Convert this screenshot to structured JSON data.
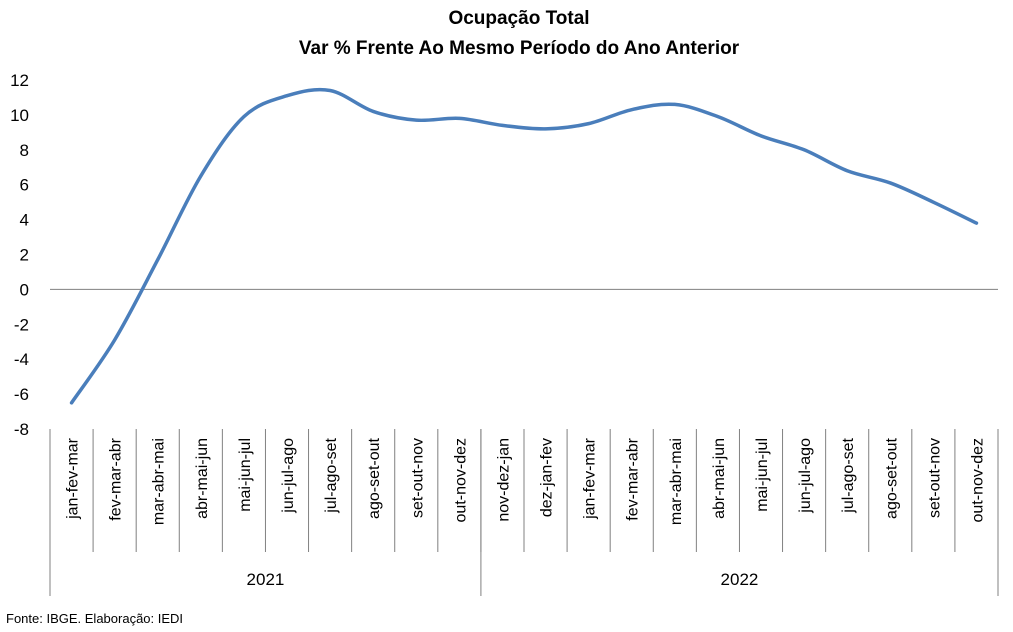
{
  "chart_data": {
    "type": "line",
    "title": "Ocupação Total",
    "subtitle": "Var % Frente Ao Mesmo Período do Ano Anterior",
    "xlabel": "",
    "ylabel": "",
    "ylim": [
      -8,
      12
    ],
    "yticks": [
      "12",
      "10",
      "8",
      "6",
      "4",
      "2",
      "0",
      "-2",
      "-4",
      "-6",
      "-8"
    ],
    "grid": false,
    "categories": [
      "jan-fev-mar",
      "fev-mar-abr",
      "mar-abr-mai",
      "abr-mai-jun",
      "mai-jun-jul",
      "jun-jul-ago",
      "jul-ago-set",
      "ago-set-out",
      "set-out-nov",
      "out-nov-dez",
      "nov-dez-jan",
      "dez-jan-fev",
      "jan-fev-mar",
      "fev-mar-abr",
      "mar-abr-mai",
      "abr-mai-jun",
      "mai-jun-jul",
      "jun-jul-ago",
      "jul-ago-set",
      "ago-set-out",
      "set-out-nov",
      "out-nov-dez"
    ],
    "groups": [
      {
        "label": "2021",
        "count": 10
      },
      {
        "label": "2022",
        "count": 12
      }
    ],
    "series": [
      {
        "color": "#4a7ebb",
        "values": [
          -6.5,
          -2.9,
          1.7,
          6.5,
          9.9,
          11.1,
          11.4,
          10.2,
          9.7,
          9.8,
          9.4,
          9.2,
          9.5,
          10.3,
          10.6,
          9.9,
          8.8,
          8.0,
          6.8,
          6.1,
          5.0,
          3.8
        ]
      }
    ]
  },
  "footer": {
    "source": "Fonte: IBGE. Elaboração: IEDI"
  }
}
